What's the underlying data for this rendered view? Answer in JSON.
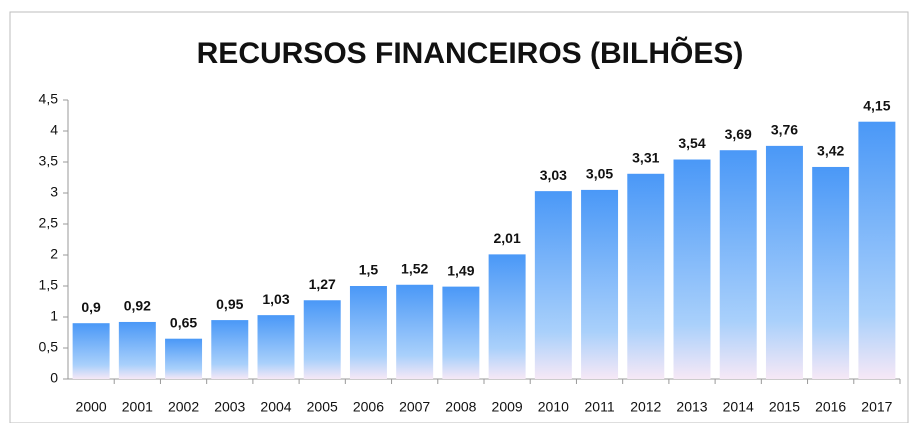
{
  "chart_data": {
    "type": "bar",
    "title": "RECURSOS FINANCEIROS (BILHÕES)",
    "categories": [
      "2000",
      "2001",
      "2002",
      "2003",
      "2004",
      "2005",
      "2006",
      "2007",
      "2008",
      "2009",
      "2010",
      "2011",
      "2012",
      "2013",
      "2014",
      "2015",
      "2016",
      "2017"
    ],
    "values": [
      0.9,
      0.92,
      0.65,
      0.95,
      1.03,
      1.27,
      1.5,
      1.52,
      1.49,
      2.01,
      3.03,
      3.05,
      3.31,
      3.54,
      3.69,
      3.76,
      3.42,
      4.15
    ],
    "value_labels": [
      "0,9",
      "0,92",
      "0,65",
      "0,95",
      "1,03",
      "1,27",
      "1,5",
      "1,52",
      "1,49",
      "2,01",
      "3,03",
      "3,05",
      "3,31",
      "3,54",
      "3,69",
      "3,76",
      "3,42",
      "4,15"
    ],
    "color": "#4a98f7",
    "ylim": [
      0,
      4.5
    ],
    "yticks": [
      0,
      {
        "value": 0.5,
        "label": "0,5"
      },
      1,
      {
        "value": 1.5,
        "label": "1,5"
      },
      2,
      {
        "value": 2.5,
        "label": "2,5"
      },
      3,
      {
        "value": 3.5,
        "label": "3,5"
      },
      4,
      {
        "value": 4.5,
        "label": "4,5"
      }
    ],
    "grid": false
  }
}
